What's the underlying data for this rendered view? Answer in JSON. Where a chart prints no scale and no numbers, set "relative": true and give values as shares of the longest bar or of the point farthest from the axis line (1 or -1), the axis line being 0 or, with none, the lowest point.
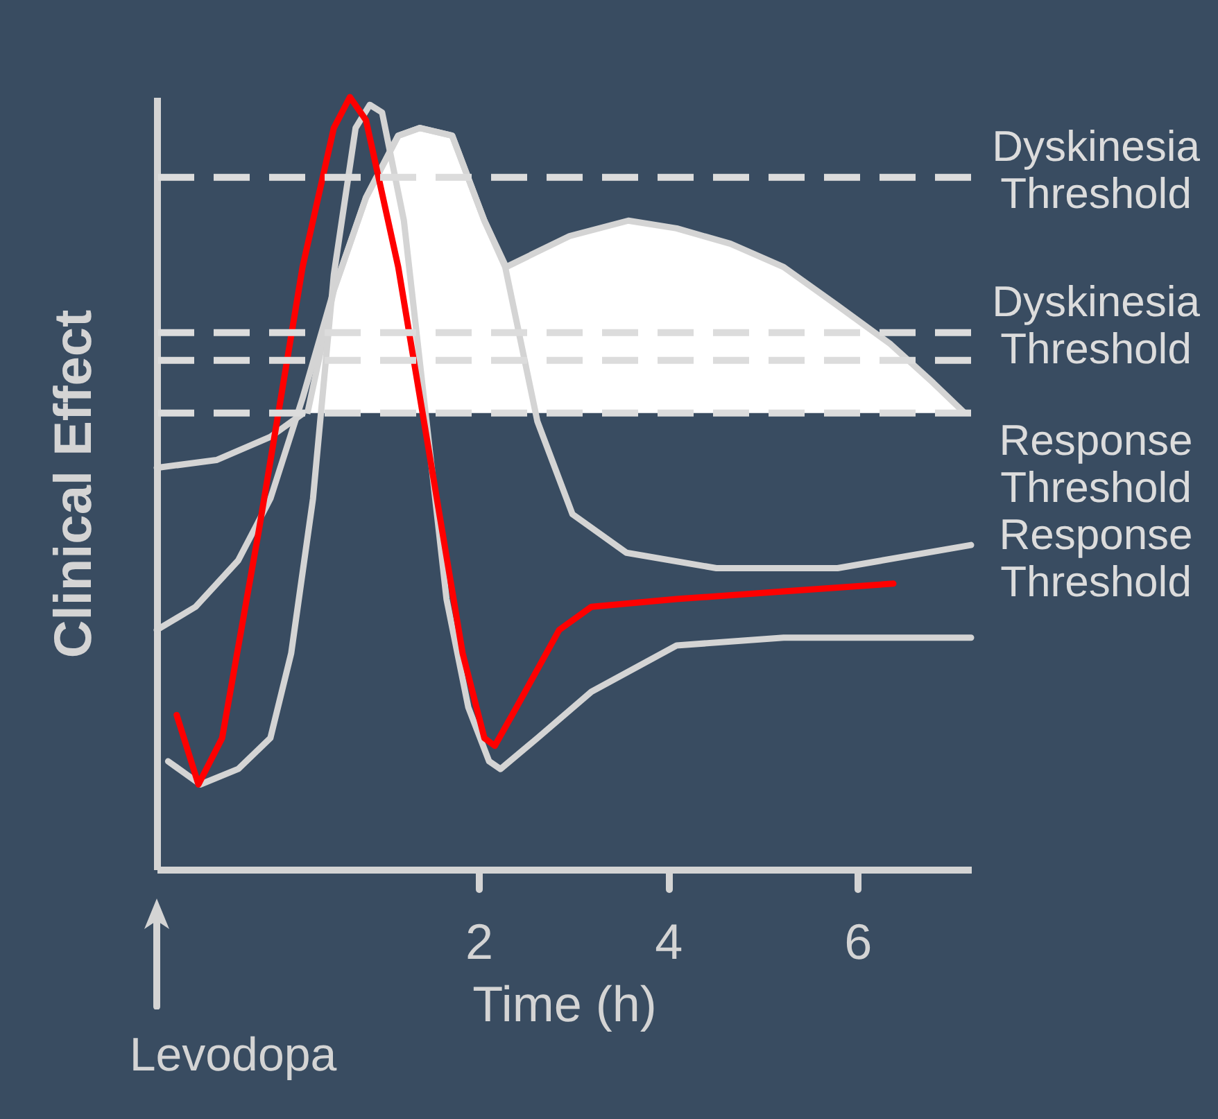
{
  "chart_data": {
    "type": "line",
    "relative": true,
    "xlabel": "Time (h)",
    "ylabel": "Clinical Effect",
    "xlim": [
      -1.4,
      7.2
    ],
    "xticks": [
      2,
      4,
      6
    ],
    "tick_labels": "x",
    "grid": false,
    "line_style": "solid",
    "series": [
      {
        "type": "area",
        "color": "#ffffff",
        "x": [
          0.19,
          0.47,
          0.81,
          1.15,
          1.38,
          1.72,
          2.06,
          2.29,
          2.96,
          3.58,
          4.09,
          4.66,
          5.22,
          5.79,
          6.35,
          6.8,
          7.14
        ],
        "values": [
          0.59,
          0.75,
          0.87,
          0.95,
          0.96,
          0.95,
          0.84,
          0.78,
          0.82,
          0.84,
          0.83,
          0.81,
          0.78,
          0.73,
          0.68,
          0.63,
          0.59
        ]
      },
      {
        "color": "#d4d4d4",
        "x": [
          -1.4,
          -0.77,
          -0.2,
          0.14
        ],
        "values": [
          0.52,
          0.53,
          0.56,
          0.59
        ]
      },
      {
        "color": "#d4d4d4",
        "x": [
          -1.4,
          -0.99,
          -0.54,
          -0.2,
          0.14,
          0.47,
          0.81,
          1.15,
          1.38,
          1.72,
          2.06,
          2.28,
          2.62,
          2.99,
          3.56,
          4.51,
          5.79,
          7.2
        ],
        "values": [
          0.31,
          0.34,
          0.4,
          0.48,
          0.61,
          0.75,
          0.87,
          0.95,
          0.96,
          0.95,
          0.84,
          0.78,
          0.58,
          0.46,
          0.41,
          0.39,
          0.39,
          0.42
        ]
      },
      {
        "color": "#d4d4d4",
        "x": [
          -1.28,
          -0.94,
          -0.54,
          -0.2,
          0.02,
          0.25,
          0.47,
          0.7,
          0.85,
          0.98,
          1.21,
          1.44,
          1.66,
          1.89,
          2.11,
          2.23,
          2.62,
          3.19,
          4.09,
          5.22,
          7.2
        ],
        "values": [
          0.14,
          0.11,
          0.13,
          0.17,
          0.28,
          0.48,
          0.77,
          0.96,
          0.99,
          0.98,
          0.84,
          0.59,
          0.35,
          0.21,
          0.14,
          0.13,
          0.17,
          0.23,
          0.29,
          0.3,
          0.3
        ]
      },
      {
        "color": "#ff0000",
        "x": [
          -1.19,
          -0.96,
          -0.71,
          -0.32,
          0.14,
          0.47,
          0.64,
          0.81,
          1.15,
          1.49,
          1.83,
          2.06,
          2.17,
          2.4,
          2.85,
          3.19,
          4.09,
          5.22,
          6.38
        ],
        "values": [
          0.2,
          0.11,
          0.17,
          0.44,
          0.78,
          0.96,
          1.0,
          0.97,
          0.78,
          0.53,
          0.28,
          0.17,
          0.16,
          0.21,
          0.31,
          0.34,
          0.35,
          0.36,
          0.37
        ]
      }
    ],
    "ref_lines": [
      {
        "axis": "y",
        "value": 0.896,
        "label": "Dyskinesia Threshold",
        "color": "#dcdcdc",
        "line_style": "dashed"
      },
      {
        "axis": "y",
        "value": 0.695,
        "label": "Dyskinesia Threshold",
        "color": "#dcdcdc",
        "line_style": "dashed"
      },
      {
        "axis": "y",
        "value": 0.659,
        "label": "Response Threshold",
        "color": "#dcdcdc",
        "line_style": "dashed"
      },
      {
        "axis": "y",
        "value": 0.591,
        "label": "Response Threshold",
        "color": "#dcdcdc",
        "line_style": "dashed"
      }
    ],
    "annotations": [
      "Levodopa"
    ]
  }
}
